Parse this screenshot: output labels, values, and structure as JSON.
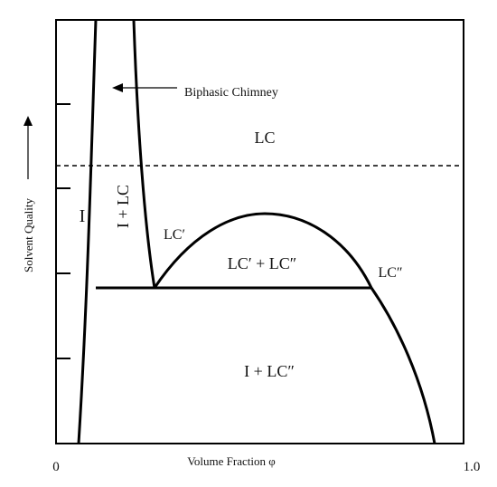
{
  "diagram": {
    "ylabel": "Solvent Quality",
    "xlabel": "Volume Fraction φ",
    "x_tick_min": "0",
    "x_tick_max": "1.0",
    "regions": {
      "lc": "LC",
      "i": "I",
      "i_lc": "I + LC",
      "lc_prime": "LC′",
      "lc_mix": "LC′ + LC″",
      "lc_double": "LC″",
      "i_lc_double": "I + LC″"
    },
    "annotation": "Biphasic Chimney",
    "colors": {
      "line": "#000000",
      "background": "#ffffff"
    }
  }
}
